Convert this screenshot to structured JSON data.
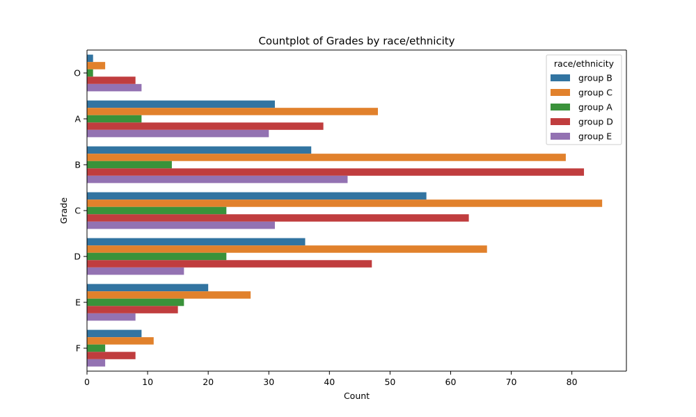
{
  "chart_data": {
    "type": "bar",
    "orientation": "horizontal",
    "title": "Countplot of Grades by race/ethnicity",
    "xlabel": "Count",
    "ylabel": "Grade",
    "categories": [
      "O",
      "A",
      "B",
      "C",
      "D",
      "E",
      "F"
    ],
    "xlim": [
      0,
      89
    ],
    "xticks": [
      0,
      10,
      20,
      30,
      40,
      50,
      60,
      70,
      80
    ],
    "grid": false,
    "legend": {
      "title": "race/ethnicity",
      "placement": "top-right"
    },
    "series": [
      {
        "name": "group B",
        "color": "#3274a1",
        "values": [
          1,
          31,
          37,
          56,
          36,
          20,
          9
        ]
      },
      {
        "name": "group C",
        "color": "#e1812c",
        "values": [
          3,
          48,
          79,
          85,
          66,
          27,
          11
        ]
      },
      {
        "name": "group A",
        "color": "#3a923a",
        "values": [
          1,
          9,
          14,
          23,
          23,
          16,
          3
        ]
      },
      {
        "name": "group D",
        "color": "#c03d3e",
        "values": [
          8,
          39,
          82,
          63,
          47,
          15,
          8
        ]
      },
      {
        "name": "group E",
        "color": "#9372b2",
        "values": [
          9,
          30,
          43,
          31,
          16,
          8,
          3
        ]
      }
    ]
  }
}
